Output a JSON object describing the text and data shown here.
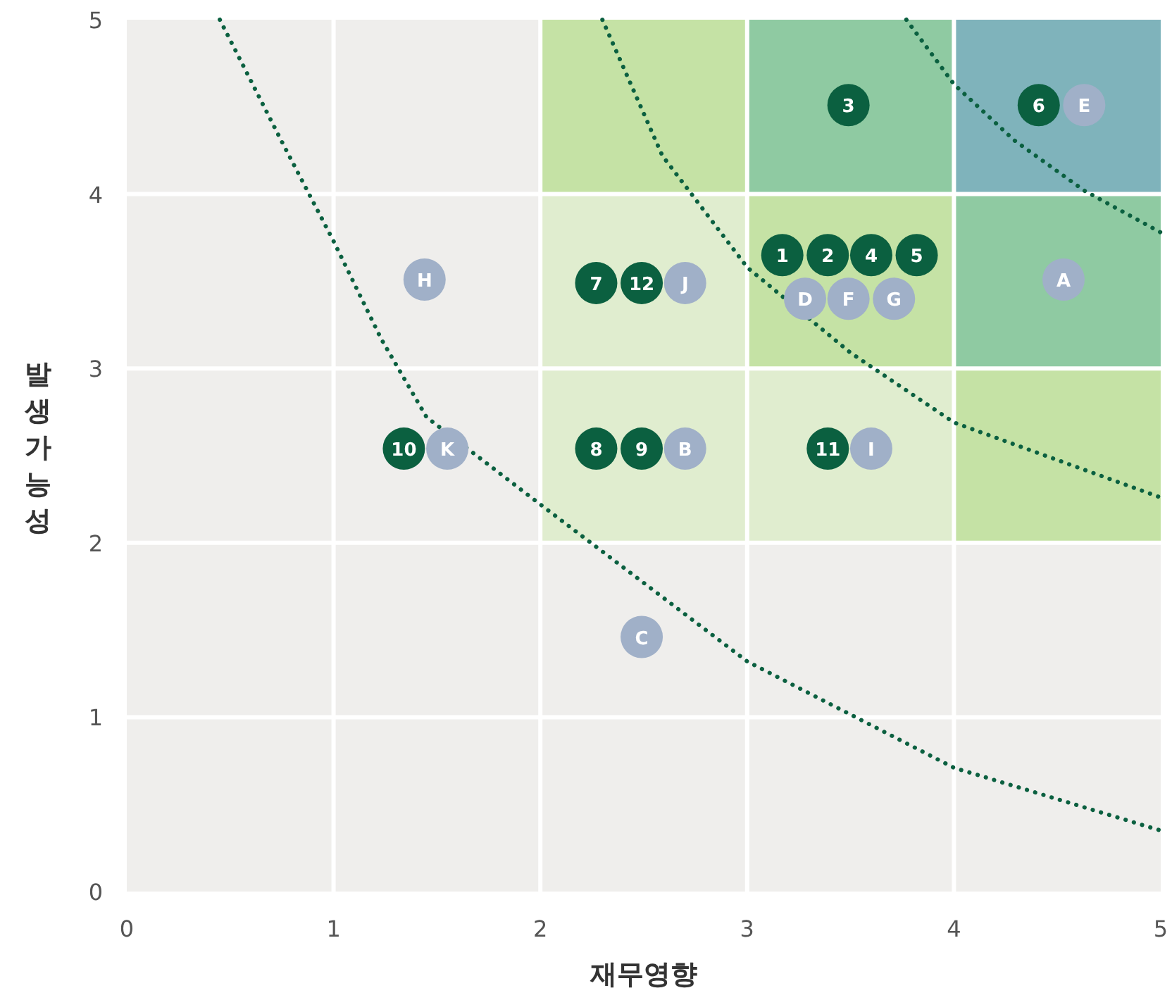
{
  "chart_data": {
    "type": "scatter",
    "xlabel": "재무영향",
    "ylabel": "발생가능성",
    "xlim": [
      0,
      5
    ],
    "ylim": [
      0,
      5
    ],
    "xticks": [
      0,
      1,
      2,
      3,
      4,
      5
    ],
    "yticks": [
      0,
      1,
      2,
      3,
      4,
      5
    ],
    "grid": true,
    "series": [
      {
        "type": "line",
        "line_style": "dotted",
        "marker": "none",
        "color": "#0b6040",
        "x": [
          0.45,
          0.75,
          1.0,
          1.23,
          1.45,
          2.0,
          3.0,
          4.0,
          5.0
        ],
        "values": [
          5.0,
          4.3,
          3.73,
          3.17,
          2.72,
          2.22,
          1.32,
          0.71,
          0.35
        ]
      },
      {
        "type": "line",
        "line_style": "dotted",
        "marker": "none",
        "color": "#0b6040",
        "x": [
          2.3,
          2.59,
          3.0,
          3.5,
          4.0,
          5.0
        ],
        "values": [
          5.0,
          4.22,
          3.58,
          3.09,
          2.69,
          2.26
        ]
      },
      {
        "type": "line",
        "line_style": "dotted",
        "marker": "none",
        "color": "#0b6040",
        "x": [
          3.77,
          4.0,
          4.29,
          4.63,
          5.0
        ],
        "values": [
          5.0,
          4.63,
          4.31,
          4.02,
          3.78
        ]
      },
      {
        "type": "scatter",
        "marker": "circle",
        "color": "#0b6040",
        "x": [
          3.17,
          3.39,
          3.49,
          3.6,
          3.82,
          4.41,
          2.27,
          2.27,
          2.49,
          1.34,
          3.39,
          2.49
        ],
        "values": [
          3.65,
          3.65,
          4.51,
          3.65,
          3.65,
          4.51,
          3.49,
          2.54,
          2.54,
          2.54,
          2.54,
          3.49
        ]
      },
      {
        "type": "scatter",
        "marker": "circle",
        "color": "#a0b0c8",
        "x": [
          4.53,
          2.7,
          2.49,
          3.28,
          4.63,
          3.49,
          3.71,
          1.44,
          3.6,
          2.7,
          1.55
        ],
        "values": [
          3.51,
          2.54,
          1.46,
          3.4,
          4.51,
          3.4,
          3.4,
          3.51,
          2.54,
          3.49,
          2.54
        ]
      }
    ],
    "annotations": [
      {
        "text": "12",
        "x": 2.49,
        "y": 3.49
      },
      {
        "text": "1",
        "x": 3.17,
        "y": 3.65
      },
      {
        "text": "2",
        "x": 3.39,
        "y": 3.65
      },
      {
        "text": "3",
        "x": 3.49,
        "y": 4.51
      },
      {
        "text": "4",
        "x": 3.6,
        "y": 3.65
      },
      {
        "text": "5",
        "x": 3.82,
        "y": 3.65
      },
      {
        "text": "6",
        "x": 4.41,
        "y": 4.51
      },
      {
        "text": "7",
        "x": 2.27,
        "y": 3.49
      },
      {
        "text": "8",
        "x": 2.27,
        "y": 2.54
      },
      {
        "text": "9",
        "x": 2.49,
        "y": 2.54
      },
      {
        "text": "10",
        "x": 1.34,
        "y": 2.54
      },
      {
        "text": "11",
        "x": 3.39,
        "y": 2.54
      },
      {
        "text": "A",
        "x": 4.53,
        "y": 3.51
      },
      {
        "text": "B",
        "x": 2.7,
        "y": 2.54
      },
      {
        "text": "C",
        "x": 2.49,
        "y": 1.46
      },
      {
        "text": "D",
        "x": 3.28,
        "y": 3.4
      },
      {
        "text": "E",
        "x": 4.63,
        "y": 4.51
      },
      {
        "text": "F",
        "x": 3.49,
        "y": 3.4
      },
      {
        "text": "G",
        "x": 3.71,
        "y": 3.4
      },
      {
        "text": "H",
        "x": 1.44,
        "y": 3.51
      },
      {
        "text": "I",
        "x": 3.6,
        "y": 2.54
      },
      {
        "text": "J",
        "x": 2.7,
        "y": 3.49
      },
      {
        "text": "K",
        "x": 1.55,
        "y": 2.54
      }
    ]
  }
}
